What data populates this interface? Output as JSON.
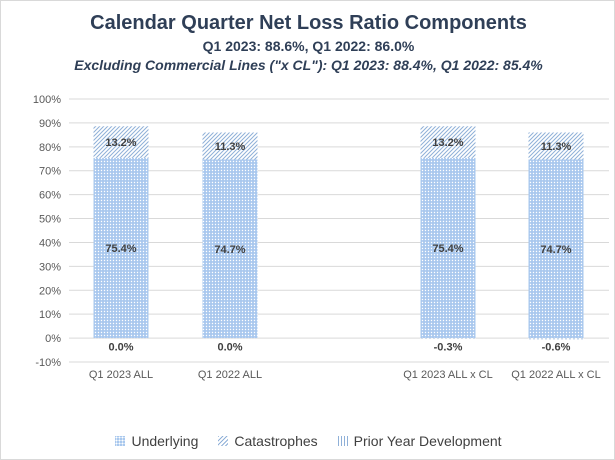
{
  "chart_data": {
    "type": "bar",
    "stacked": true,
    "title": "Calendar Quarter Net Loss Ratio Components",
    "subtitle": "Q1 2023: 88.6%, Q1 2022: 86.0%",
    "subtitle2": "Excluding Commercial Lines (\"x CL\"): Q1 2023: 88.4%, Q1 2022: 85.4%",
    "categories": [
      "Q1 2023 ALL",
      "Q1 2022 ALL",
      "",
      "Q1 2023 ALL x CL",
      "Q1 2022 ALL x CL"
    ],
    "series": [
      {
        "name": "Underlying",
        "values": [
          75.4,
          74.7,
          null,
          75.4,
          74.7
        ],
        "labels": [
          "75.4%",
          "74.7%",
          "",
          "75.4%",
          "74.7%"
        ],
        "color": "#a9c8ee"
      },
      {
        "name": "Catastrophes",
        "values": [
          13.2,
          11.3,
          null,
          13.2,
          11.3
        ],
        "labels": [
          "13.2%",
          "11.3%",
          "",
          "13.2%",
          "11.3%"
        ],
        "color": "#8fb0d8"
      },
      {
        "name": "Prior Year Development",
        "values": [
          0.0,
          0.0,
          null,
          -0.3,
          -0.6
        ],
        "labels": [
          "0.0%",
          "0.0%",
          "",
          "-0.3%",
          "-0.6%"
        ],
        "color": "#8fb0d8"
      }
    ],
    "yticks": [
      "-10%",
      "0%",
      "10%",
      "20%",
      "30%",
      "40%",
      "50%",
      "60%",
      "70%",
      "80%",
      "90%",
      "100%"
    ],
    "ylim": [
      -10,
      100
    ],
    "grid": true,
    "legend": "bottom"
  }
}
